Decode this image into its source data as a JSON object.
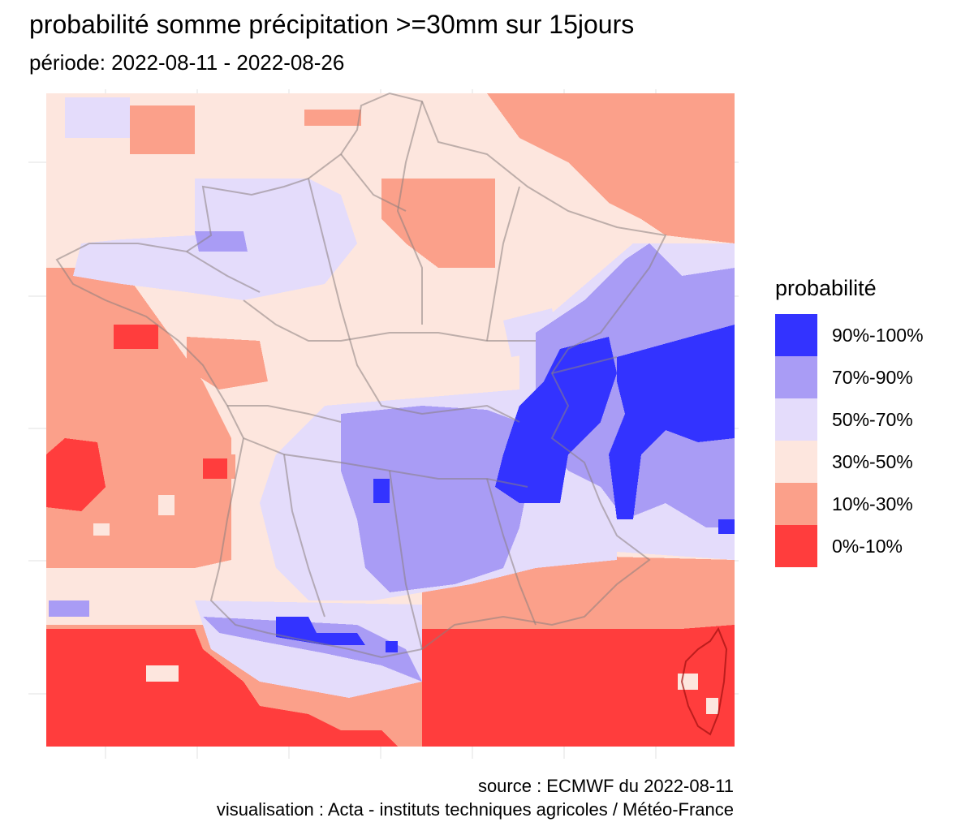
{
  "title": "probabilité somme précipitation >=30mm sur 15jours",
  "subtitle": "période: 2022-08-11 - 2022-08-26",
  "legend": {
    "title": "probabilité",
    "items": [
      {
        "label": "90%-100%",
        "color": "#3333ff"
      },
      {
        "label": "70%-90%",
        "color": "#a99cf5"
      },
      {
        "label": "50%-70%",
        "color": "#e4dcfb"
      },
      {
        "label": "30%-50%",
        "color": "#fde6de"
      },
      {
        "label": "10%-30%",
        "color": "#fba08a"
      },
      {
        "label": "0%-10%",
        "color": "#ff3d3d"
      }
    ]
  },
  "caption": {
    "source": "source : ECMWF du 2022-08-11",
    "visualisation": "visualisation : Acta - instituts techniques agricoles / Météo-France"
  }
}
